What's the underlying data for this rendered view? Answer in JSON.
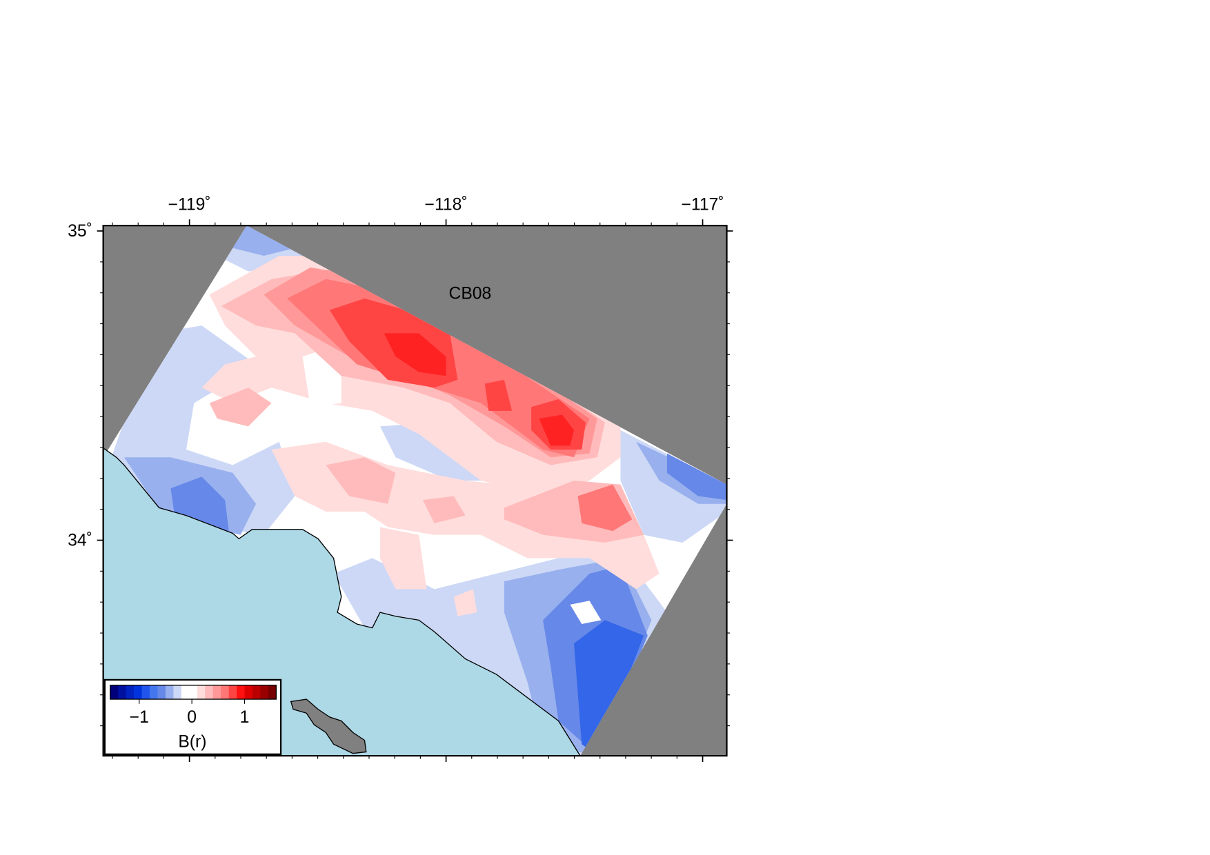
{
  "map": {
    "title": "CB08",
    "xlim": [
      -119.336,
      -116.906
    ],
    "ylim": [
      33.303,
      35.0175
    ],
    "xticks": [
      {
        "value": -119,
        "label": "−119˚"
      },
      {
        "value": -118,
        "label": "−118˚"
      },
      {
        "value": -117,
        "label": "−117˚"
      }
    ],
    "yticks": [
      {
        "value": 35,
        "label": "35˚"
      },
      {
        "value": 34,
        "label": "34˚"
      }
    ],
    "colorbar": {
      "label": "B(r)",
      "clim": [
        -1.55,
        1.6
      ],
      "ticks": [
        {
          "value": -1,
          "label": "−1"
        },
        0,
        1
      ],
      "colors": [
        "#00007a",
        "#0010a0",
        "#0022c0",
        "#0033dd",
        "#2255ee",
        "#4477ee",
        "#6688e8",
        "#99b0ee",
        "#ccd8f5",
        "#ffffff",
        "#ffffff",
        "#ffdddd",
        "#ffbbbb",
        "#ff9999",
        "#ff7777",
        "#ff4444",
        "#ff1111",
        "#dd0000",
        "#bb0000",
        "#990000",
        "#770000"
      ]
    }
  }
}
